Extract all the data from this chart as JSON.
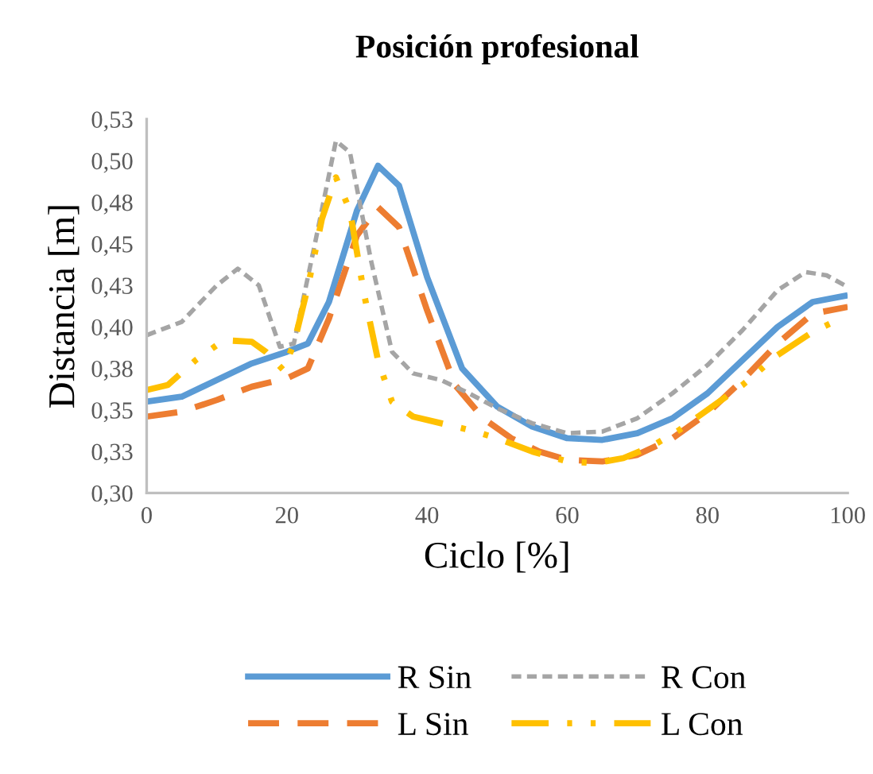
{
  "chart_data": {
    "type": "line",
    "title": "Posición profesional",
    "xlabel": "Ciclo [%]",
    "ylabel": "Distancia [m]",
    "xlim": [
      0,
      100
    ],
    "xticks": [
      0,
      20,
      40,
      60,
      80,
      100
    ],
    "ylim": [
      0.3,
      0.525
    ],
    "yticks": [
      {
        "value": 0.3,
        "label": "0,30"
      },
      {
        "value": 0.325,
        "label": "0,33"
      },
      {
        "value": 0.35,
        "label": "0,35"
      },
      {
        "value": 0.375,
        "label": "0,38"
      },
      {
        "value": 0.4,
        "label": "0,40"
      },
      {
        "value": 0.425,
        "label": "0,43"
      },
      {
        "value": 0.45,
        "label": "0,45"
      },
      {
        "value": 0.475,
        "label": "0,48"
      },
      {
        "value": 0.5,
        "label": "0,50"
      },
      {
        "value": 0.525,
        "label": "0,53"
      }
    ],
    "grid": false,
    "legend": "bottom",
    "marker": "none",
    "series": [
      {
        "name": "R Sin",
        "color": "#5b9bd5",
        "line_style": "solid",
        "x": [
          0,
          5,
          10,
          15,
          20,
          23,
          26,
          30,
          33,
          36,
          40,
          45,
          50,
          55,
          60,
          65,
          70,
          75,
          80,
          85,
          90,
          95,
          100
        ],
        "values": [
          0.355,
          0.358,
          0.368,
          0.378,
          0.385,
          0.39,
          0.415,
          0.47,
          0.497,
          0.485,
          0.43,
          0.375,
          0.352,
          0.34,
          0.333,
          0.332,
          0.336,
          0.345,
          0.36,
          0.38,
          0.4,
          0.415,
          0.419
        ]
      },
      {
        "name": "L Sin",
        "color": "#ed7d31",
        "line_style": "dashed",
        "x": [
          0,
          5,
          10,
          15,
          20,
          23,
          26,
          30,
          33,
          36,
          40,
          44,
          48,
          52,
          56,
          60,
          65,
          70,
          75,
          80,
          85,
          90,
          95,
          100
        ],
        "values": [
          0.346,
          0.349,
          0.356,
          0.364,
          0.369,
          0.375,
          0.405,
          0.455,
          0.472,
          0.46,
          0.41,
          0.365,
          0.345,
          0.333,
          0.325,
          0.32,
          0.319,
          0.323,
          0.333,
          0.348,
          0.368,
          0.39,
          0.408,
          0.412
        ]
      },
      {
        "name": "R Con",
        "color": "#a5a5a5",
        "line_style": "dotted",
        "x": [
          0,
          5,
          10,
          13,
          16,
          19,
          21,
          24,
          27,
          29,
          32,
          35,
          38,
          42,
          46,
          50,
          55,
          60,
          65,
          70,
          75,
          80,
          85,
          90,
          94,
          97,
          100
        ],
        "values": [
          0.395,
          0.403,
          0.425,
          0.435,
          0.425,
          0.388,
          0.39,
          0.45,
          0.512,
          0.505,
          0.44,
          0.385,
          0.372,
          0.368,
          0.36,
          0.351,
          0.342,
          0.336,
          0.337,
          0.345,
          0.36,
          0.377,
          0.398,
          0.422,
          0.433,
          0.431,
          0.424
        ]
      },
      {
        "name": "L Con",
        "color": "#ffc000",
        "line_style": "dashdot",
        "x": [
          0,
          3,
          7,
          11,
          15,
          17,
          19.5,
          21,
          23,
          25,
          27,
          29,
          31,
          33,
          35,
          38,
          42,
          46,
          50,
          55,
          60,
          64,
          68,
          72,
          76,
          80,
          85,
          90,
          95,
          98
        ],
        "values": [
          0.362,
          0.365,
          0.38,
          0.392,
          0.391,
          0.385,
          0.374,
          0.39,
          0.424,
          0.465,
          0.49,
          0.47,
          0.42,
          0.38,
          0.355,
          0.346,
          0.342,
          0.338,
          0.333,
          0.325,
          0.319,
          0.318,
          0.321,
          0.328,
          0.338,
          0.35,
          0.365,
          0.383,
          0.397,
          0.403
        ]
      }
    ]
  }
}
